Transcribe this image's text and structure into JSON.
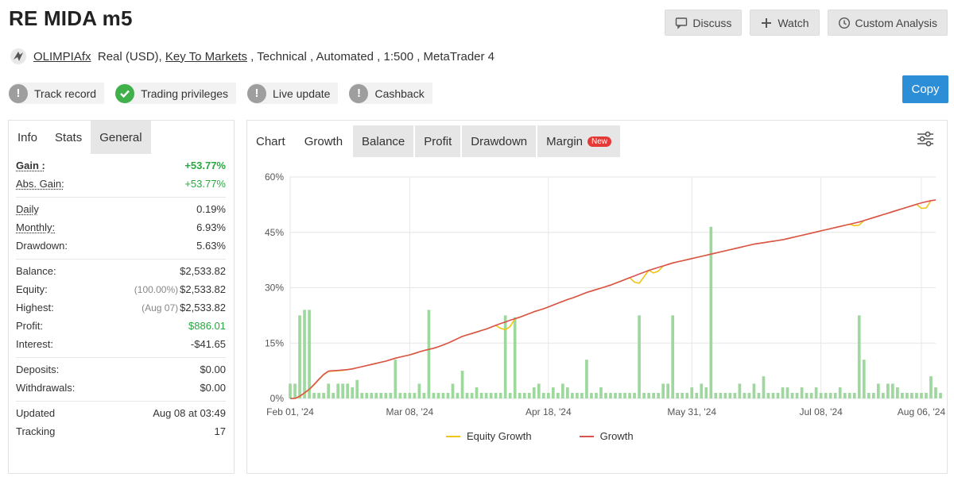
{
  "header": {
    "title": "RE MIDA m5",
    "buttons": {
      "discuss": "Discuss",
      "watch": "Watch",
      "custom_analysis": "Custom Analysis"
    }
  },
  "account": {
    "broker_user": "OLIMPIAfx",
    "type": "Real (USD),",
    "broker": "Key To Markets",
    "details": " , Technical , Automated , 1:500 , MetaTrader 4"
  },
  "badges": {
    "track_record": "Track record",
    "trading_privileges": "Trading privileges",
    "live_update": "Live update",
    "cashback": "Cashback"
  },
  "copy_label": "Copy",
  "left_tabs": {
    "info": "Info",
    "stats": "Stats",
    "general": "General"
  },
  "stats": {
    "gain_label": "Gain :",
    "gain": "+53.77%",
    "abs_gain_label": "Abs. Gain:",
    "abs_gain": "+53.77%",
    "daily_label": "Daily",
    "daily": "0.19%",
    "monthly_label": "Monthly:",
    "monthly": "6.93%",
    "drawdown_label": "Drawdown:",
    "drawdown": "5.63%",
    "balance_label": "Balance:",
    "balance": "$2,533.82",
    "equity_label": "Equity:",
    "equity_pct": "(100.00%)",
    "equity": "$2,533.82",
    "highest_label": "Highest:",
    "highest_date": "(Aug 07)",
    "highest": "$2,533.82",
    "profit_label": "Profit:",
    "profit": "$886.01",
    "interest_label": "Interest:",
    "interest": "-$41.65",
    "deposits_label": "Deposits:",
    "deposits": "$0.00",
    "withdrawals_label": "Withdrawals:",
    "withdrawals": "$0.00",
    "updated_label": "Updated",
    "updated": "Aug 08 at 03:49",
    "tracking_label": "Tracking",
    "tracking": "17"
  },
  "chart_tabs": {
    "chart": "Chart",
    "growth": "Growth",
    "balance": "Balance",
    "profit": "Profit",
    "drawdown": "Drawdown",
    "margin": "Margin",
    "new": "New"
  },
  "colors": {
    "growth": "#d9534f",
    "equity": "#f0c419",
    "bars": "#9ed89e",
    "accent": "#2d8ed8"
  },
  "chart_data": {
    "type": "line",
    "ylim": [
      0,
      60
    ],
    "yticks": [
      "0%",
      "15%",
      "30%",
      "45%",
      "60%"
    ],
    "ytick_values": [
      0,
      15,
      30,
      45,
      60
    ],
    "x_tick_labels": [
      "Feb 01, '24",
      "Mar 08, '24",
      "Apr 18, '24",
      "May 31, '24",
      "Jul 08, '24",
      "Aug 06, '24"
    ],
    "x_tick_indices": [
      0,
      25,
      54,
      84,
      111,
      132
    ],
    "n_points": 136,
    "series": [
      {
        "name": "Growth",
        "values": [
          0.0,
          0.0,
          0.6,
          1.5,
          2.5,
          3.8,
          5.2,
          6.5,
          7.4,
          7.5,
          7.6,
          7.7,
          7.8,
          8.0,
          8.3,
          8.6,
          8.9,
          9.2,
          9.5,
          9.8,
          10.1,
          10.5,
          10.9,
          11.2,
          11.5,
          11.8,
          12.2,
          12.6,
          13.0,
          13.3,
          13.6,
          14.0,
          14.5,
          15.0,
          15.6,
          16.2,
          16.8,
          17.2,
          17.6,
          18.0,
          18.4,
          18.8,
          19.3,
          19.8,
          20.3,
          20.7,
          21.2,
          21.6,
          22.0,
          22.5,
          23.0,
          23.5,
          23.9,
          24.3,
          24.8,
          25.3,
          25.8,
          26.3,
          26.8,
          27.2,
          27.7,
          28.2,
          28.7,
          29.1,
          29.5,
          29.9,
          30.3,
          30.7,
          31.2,
          31.7,
          32.2,
          32.7,
          33.2,
          33.7,
          34.2,
          34.7,
          35.1,
          35.5,
          35.9,
          36.3,
          36.7,
          37.0,
          37.3,
          37.6,
          37.9,
          38.2,
          38.5,
          38.8,
          39.1,
          39.4,
          39.7,
          40.0,
          40.3,
          40.6,
          40.9,
          41.2,
          41.5,
          41.8,
          42.0,
          42.2,
          42.4,
          42.6,
          42.8,
          43.0,
          43.3,
          43.6,
          43.9,
          44.2,
          44.5,
          44.8,
          45.1,
          45.4,
          45.7,
          46.0,
          46.3,
          46.6,
          46.9,
          47.2,
          47.5,
          47.8,
          48.2,
          48.6,
          49.0,
          49.4,
          49.8,
          50.2,
          50.6,
          51.0,
          51.4,
          51.8,
          52.2,
          52.6,
          53.0,
          53.3,
          53.6,
          53.77
        ]
      },
      {
        "name": "Equity Growth",
        "values": [
          0.0,
          0.0,
          0.5,
          1.4,
          2.4,
          3.7,
          5.1,
          6.4,
          7.3,
          7.4,
          7.5,
          7.6,
          7.8,
          8.0,
          8.3,
          8.6,
          8.9,
          9.2,
          9.5,
          9.8,
          10.1,
          10.5,
          10.9,
          11.2,
          11.5,
          11.8,
          12.2,
          12.6,
          13.0,
          13.3,
          13.6,
          14.0,
          14.5,
          15.0,
          15.6,
          16.2,
          16.8,
          17.2,
          17.6,
          18.0,
          18.4,
          18.8,
          19.3,
          19.8,
          19.0,
          18.6,
          19.5,
          21.6,
          22.0,
          22.5,
          23.0,
          23.5,
          23.9,
          24.3,
          24.8,
          25.3,
          25.8,
          26.3,
          26.8,
          27.2,
          27.7,
          28.2,
          28.7,
          29.1,
          29.5,
          29.9,
          30.3,
          30.7,
          31.2,
          31.7,
          32.2,
          32.7,
          31.5,
          31.2,
          33.0,
          34.7,
          34.0,
          34.5,
          35.9,
          36.3,
          36.7,
          37.0,
          37.3,
          37.6,
          37.9,
          38.2,
          38.5,
          38.8,
          39.1,
          39.4,
          39.7,
          40.0,
          40.3,
          40.6,
          40.9,
          41.2,
          41.5,
          41.8,
          42.0,
          42.2,
          42.4,
          42.6,
          42.8,
          43.0,
          43.3,
          43.6,
          43.9,
          44.2,
          44.5,
          44.8,
          45.1,
          45.4,
          45.7,
          46.0,
          46.3,
          46.6,
          46.9,
          47.2,
          46.8,
          47.0,
          48.2,
          48.6,
          49.0,
          49.4,
          49.8,
          50.2,
          50.6,
          51.0,
          51.4,
          51.8,
          52.2,
          52.6,
          51.5,
          51.6,
          53.6,
          53.77
        ]
      }
    ],
    "bars": [
      4,
      4,
      22.5,
      24,
      24,
      1.5,
      1.5,
      1.5,
      4,
      1.5,
      4,
      4,
      4,
      3,
      5,
      1.5,
      1.5,
      1.5,
      1.5,
      1.5,
      1.5,
      1.5,
      10.5,
      1.5,
      1.5,
      1.5,
      1.5,
      4,
      1.5,
      24,
      1.5,
      1.5,
      1.5,
      1.5,
      4,
      1.5,
      7.5,
      1.5,
      1.5,
      3,
      1.5,
      1.5,
      1.5,
      1.5,
      1.5,
      22.5,
      1.5,
      22,
      1.5,
      1.5,
      1.5,
      3,
      4,
      1.5,
      1.5,
      3,
      1.5,
      4,
      3,
      1.5,
      1.5,
      1.5,
      10.5,
      1.5,
      1.5,
      3,
      1.5,
      1.5,
      1.5,
      1.5,
      1.5,
      1.5,
      1.5,
      22.5,
      1.5,
      1.5,
      1.5,
      1.5,
      4,
      4,
      22.5,
      1.5,
      1.5,
      1.5,
      3,
      1.5,
      4,
      3,
      46.5,
      1.5,
      1.5,
      1.5,
      1.5,
      1.5,
      4,
      1.5,
      1.5,
      4,
      1.5,
      6,
      1.5,
      1.5,
      1.5,
      3,
      3,
      1.5,
      1.5,
      3,
      1.5,
      1.5,
      3,
      1.5,
      1.5,
      1.5,
      1.5,
      3,
      1.5,
      1.5,
      1.5,
      22.5,
      10.5,
      1.5,
      1.5,
      4,
      1.5,
      4,
      4,
      3,
      1.5,
      1.5,
      1.5,
      1.5,
      1.5,
      1.5,
      6,
      3,
      1.5
    ]
  }
}
